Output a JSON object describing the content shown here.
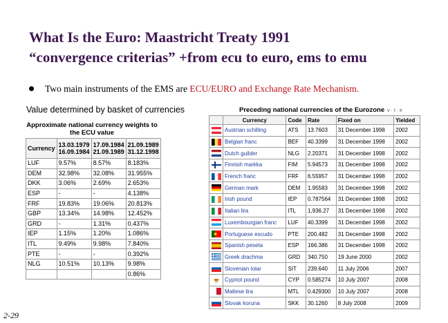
{
  "slide": {
    "title_line1": "What Is the Euro: Maastricht Treaty 1991",
    "title_line2": "“convergence criterias” +from ecu to euro, ems to emu",
    "bullet_prefix": "Two main instruments of the EMS are ",
    "bullet_highlight": "ECU/EURO and Exchange Rate Mechanism.",
    "slide_number": "2-29",
    "colors": {
      "title": "#3d1550",
      "highlight": "#c0141b",
      "link": "#1f3f9e"
    }
  },
  "left_table": {
    "heading": "Value determined by basket of currencies",
    "subheading": "Approximate national currency weights to the ECU value",
    "headers": [
      "Currency",
      "13.03.1979 16.09.1984",
      "17.09.1984 21.09.1989",
      "21.09.1989 31.12.1998"
    ],
    "rows": [
      [
        "LUF",
        "9.57%",
        "8.57%",
        "8.183%"
      ],
      [
        "DEM",
        "32.98%",
        "32.08%",
        "31.955%"
      ],
      [
        "DKK",
        "3.06%",
        "2.69%",
        "2.653%"
      ],
      [
        "ESP",
        "-",
        "-",
        "4.138%"
      ],
      [
        "FRF",
        "19.83%",
        "19.06%",
        "20.813%"
      ],
      [
        "GBP",
        "13.34%",
        "14.98%",
        "12.452%"
      ],
      [
        "GRD",
        "-",
        "1.31%",
        "0.437%"
      ],
      [
        "IEP",
        "1.15%",
        "1.20%",
        "1.086%"
      ],
      [
        "ITL",
        "9.49%",
        "9.98%",
        "7.840%"
      ],
      [
        "PTE",
        "-",
        "-",
        "0.392%"
      ],
      [
        "NLG",
        "10.51%",
        "10.13%",
        "9.98%"
      ],
      [
        "",
        "",
        "",
        "0.86%"
      ]
    ]
  },
  "right_table": {
    "heading": "Preceding national currencies of the Eurozone",
    "vte": "v · t · e",
    "headers": [
      "",
      "Currency",
      "Code",
      "Rate",
      "Fixed on",
      "Yielded"
    ],
    "rows": [
      {
        "flag": "austria",
        "currency": "Austrian schilling",
        "code": "ATS",
        "rate": "13.7603",
        "fixed": "31 December 1998",
        "yielded": "2002"
      },
      {
        "flag": "belgium",
        "currency": "Belgian franc",
        "code": "BEF",
        "rate": "40.3399",
        "fixed": "31 December 1998",
        "yielded": "2002"
      },
      {
        "flag": "netherlands",
        "currency": "Dutch guilder",
        "code": "NLG",
        "rate": "2.20371",
        "fixed": "31 December 1998",
        "yielded": "2002"
      },
      {
        "flag": "finland",
        "currency": "Finnish markka",
        "code": "FIM",
        "rate": "5.94573",
        "fixed": "31 December 1998",
        "yielded": "2002"
      },
      {
        "flag": "france",
        "currency": "French franc",
        "code": "FRF",
        "rate": "6.55957",
        "fixed": "31 December 1998",
        "yielded": "2002"
      },
      {
        "flag": "germany",
        "currency": "German mark",
        "code": "DEM",
        "rate": "1.95583",
        "fixed": "31 December 1998",
        "yielded": "2002"
      },
      {
        "flag": "ireland",
        "currency": "Irish pound",
        "code": "IEP",
        "rate": "0.787564",
        "fixed": "31 December 1998",
        "yielded": "2002"
      },
      {
        "flag": "italy",
        "currency": "Italian lira",
        "code": "ITL",
        "rate": "1,936.27",
        "fixed": "31 December 1998",
        "yielded": "2002"
      },
      {
        "flag": "luxembourg",
        "currency": "Luxembourgian franc",
        "code": "LUF",
        "rate": "40.3399",
        "fixed": "31 December 1998",
        "yielded": "2002"
      },
      {
        "flag": "portugal",
        "currency": "Portuguese escudo",
        "code": "PTE",
        "rate": "200.482",
        "fixed": "31 December 1998",
        "yielded": "2002"
      },
      {
        "flag": "spain",
        "currency": "Spanish peseta",
        "code": "ESP",
        "rate": "166.386",
        "fixed": "31 December 1998",
        "yielded": "2002"
      },
      {
        "flag": "greece",
        "currency": "Greek drachma",
        "code": "GRD",
        "rate": "340.750",
        "fixed": "19 June 2000",
        "yielded": "2002"
      },
      {
        "flag": "slovenia",
        "currency": "Slovenian tolar",
        "code": "SIT",
        "rate": "239.640",
        "fixed": "11 July 2006",
        "yielded": "2007"
      },
      {
        "flag": "cyprus",
        "currency": "Cypriot pound",
        "code": "CYP",
        "rate": "0.585274",
        "fixed": "10 July 2007",
        "yielded": "2008"
      },
      {
        "flag": "malta",
        "currency": "Maltese lira",
        "code": "MTL",
        "rate": "0.429300",
        "fixed": "10 July 2007",
        "yielded": "2008"
      },
      {
        "flag": "slovakia",
        "currency": "Slovak koruna",
        "code": "SKK",
        "rate": "30.1260",
        "fixed": "8 July 2008",
        "yielded": "2009"
      }
    ]
  }
}
